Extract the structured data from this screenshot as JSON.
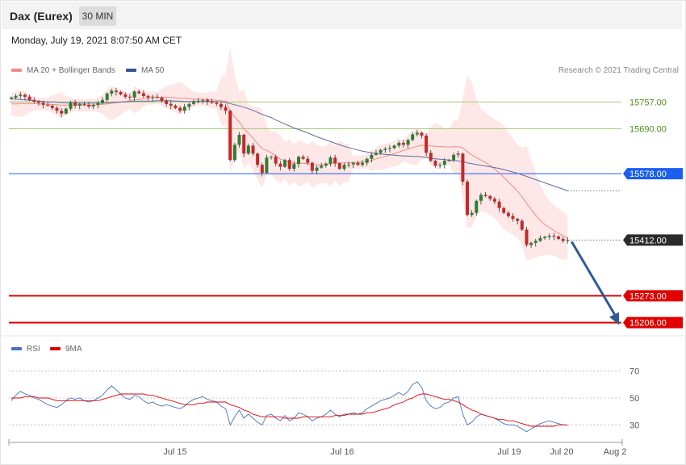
{
  "header": {
    "instrument": "Dax (Eurex)",
    "timeframe": "30 MIN",
    "datetime": "Monday, July 19, 2021 8:07:50 AM CET"
  },
  "legend": {
    "price": [
      {
        "label": "MA 20 + Bollinger Bands",
        "color": "#f28b82"
      },
      {
        "label": "MA 50",
        "color": "#2f5597"
      }
    ],
    "rsi": [
      {
        "label": "RSI",
        "color": "#4472c4"
      },
      {
        "label": "9MA",
        "color": "#e00000"
      }
    ],
    "copyright": "Research © 2021 Trading Central"
  },
  "colors": {
    "up": "#2e7d32",
    "down": "#c62828",
    "resistance": "#a6cc70",
    "pivot": "#1a5ff0",
    "support": "#e00000",
    "last": "#2b2b2b",
    "forecast_arrow": "#2e5a9a"
  },
  "chart_data": [
    {
      "type": "candlestick",
      "title": "Dax (Eurex)",
      "interval": "30 MIN",
      "ylim": [
        15185,
        15810
      ],
      "x_ticks": [
        "Jul 15",
        "Jul 16",
        "Jul 19",
        "Jul 20",
        "Aug 2"
      ],
      "last_price": 15412.0,
      "levels": [
        {
          "value": 15757.0,
          "label": "15757.00",
          "kind": "resistance"
        },
        {
          "value": 15690.0,
          "label": "15690.00",
          "kind": "resistance"
        },
        {
          "value": 15578.0,
          "label": "15578.00",
          "kind": "pivot"
        },
        {
          "value": 15412.0,
          "label": "15412.00",
          "kind": "last"
        },
        {
          "value": 15273.0,
          "label": "15273.00",
          "kind": "support"
        },
        {
          "value": 15206.0,
          "label": "15206.00",
          "kind": "support"
        }
      ],
      "closes": [
        15768,
        15772,
        15775,
        15770,
        15762,
        15758,
        15755,
        15750,
        15748,
        15742,
        15735,
        15728,
        15740,
        15755,
        15748,
        15752,
        15750,
        15746,
        15750,
        15755,
        15762,
        15778,
        15785,
        15782,
        15776,
        15770,
        15768,
        15783,
        15779,
        15772,
        15768,
        15770,
        15768,
        15760,
        15752,
        15748,
        15742,
        15735,
        15745,
        15752,
        15758,
        15760,
        15762,
        15758,
        15755,
        15752,
        15744,
        15735,
        15612,
        15650,
        15675,
        15628,
        15648,
        15628,
        15600,
        15580,
        15618,
        15620,
        15603,
        15595,
        15612,
        15590,
        15602,
        15620,
        15615,
        15605,
        15585,
        15593,
        15598,
        15603,
        15618,
        15604,
        15590,
        15600,
        15601,
        15605,
        15600,
        15605,
        15615,
        15625,
        15630,
        15637,
        15640,
        15642,
        15648,
        15655,
        15650,
        15662,
        15676,
        15680,
        15673,
        15630,
        15610,
        15598,
        15600,
        15610,
        15612,
        15625,
        15628,
        15558,
        15475,
        15480,
        15510,
        15525,
        15522,
        15515,
        15508,
        15492,
        15480,
        15472,
        15465,
        15460,
        15438,
        15400,
        15405,
        15410,
        15417,
        15420,
        15423,
        15421,
        15415,
        15410,
        15412
      ],
      "ma20": [
        15752,
        15752,
        15753,
        15753,
        15753,
        15753,
        15752,
        15752,
        15751,
        15751,
        15750,
        15749,
        15749,
        15749,
        15749,
        15749,
        15749,
        15749,
        15749,
        15750,
        15751,
        15752,
        15754,
        15755,
        15757,
        15758,
        15760,
        15762,
        15763,
        15765,
        15766,
        15767,
        15768,
        15768,
        15768,
        15768,
        15767,
        15766,
        15766,
        15765,
        15764,
        15764,
        15763,
        15763,
        15762,
        15761,
        15760,
        15759,
        15736,
        15719,
        15707,
        15690,
        15679,
        15667,
        15653,
        15641,
        15636,
        15630,
        15622,
        15614,
        15611,
        15606,
        15604,
        15604,
        15604,
        15603,
        15601,
        15600,
        15600,
        15601,
        15603,
        15604,
        15604,
        15605,
        15605,
        15606,
        15606,
        15607,
        15609,
        15611,
        15615,
        15618,
        15621,
        15624,
        15628,
        15632,
        15636,
        15639,
        15643,
        15646,
        15649,
        15648,
        15647,
        15646,
        15645,
        15645,
        15644,
        15645,
        15645,
        15642,
        15633,
        15625,
        15618,
        15612,
        15606,
        15598,
        15590,
        15580,
        15569,
        15557,
        15546,
        15534,
        15520,
        15504,
        15489,
        15474,
        15461,
        15451,
        15443,
        15436,
        15429,
        15423,
        15418
      ],
      "ma50": [
        15765,
        15764,
        15763,
        15762,
        15761,
        15760,
        15759,
        15758,
        15757,
        15757,
        15756,
        15755,
        15755,
        15755,
        15755,
        15754,
        15754,
        15754,
        15754,
        15754,
        15754,
        15755,
        15755,
        15756,
        15757,
        15757,
        15758,
        15758,
        15759,
        15759,
        15759,
        15759,
        15760,
        15760,
        15760,
        15760,
        15759,
        15759,
        15758,
        15758,
        15758,
        15758,
        15758,
        15758,
        15758,
        15758,
        15757,
        15756,
        15753,
        15750,
        15747,
        15744,
        15740,
        15736,
        15731,
        15726,
        15722,
        15718,
        15712,
        15707,
        15702,
        15697,
        15692,
        15688,
        15684,
        15680,
        15675,
        15670,
        15666,
        15662,
        15658,
        15654,
        15650,
        15646,
        15643,
        15640,
        15637,
        15634,
        15632,
        15630,
        15628,
        15627,
        15626,
        15625,
        15624,
        15623,
        15622,
        15622,
        15621,
        15621,
        15620,
        15618,
        15617,
        15615,
        15614,
        15613,
        15612,
        15611,
        15610,
        15608,
        15605,
        15603,
        15601,
        15599,
        15597,
        15595,
        15593,
        15591,
        15588,
        15585,
        15582,
        15579,
        15575,
        15571,
        15567,
        15563,
        15559,
        15555,
        15551,
        15547,
        15543,
        15539,
        15535
      ],
      "forecast": {
        "from": 15412,
        "to": 15206
      }
    },
    {
      "type": "line",
      "name": "RSI",
      "ylim": [
        20,
        80
      ],
      "y_ticks": [
        70,
        50,
        30
      ],
      "series": [
        {
          "name": "RSI",
          "values": [
            48,
            52,
            55,
            53,
            52,
            50,
            49,
            47,
            45,
            44,
            43,
            45,
            48,
            50,
            49,
            50,
            48,
            47,
            48,
            50,
            52,
            56,
            59,
            56,
            53,
            50,
            49,
            52,
            51,
            48,
            46,
            47,
            45,
            44,
            45,
            44,
            43,
            42,
            44,
            47,
            49,
            50,
            51,
            49,
            48,
            47,
            44,
            42,
            30,
            36,
            41,
            35,
            38,
            35,
            32,
            30,
            37,
            38,
            35,
            33,
            37,
            33,
            35,
            39,
            38,
            36,
            33,
            35,
            36,
            38,
            41,
            38,
            36,
            38,
            38,
            39,
            38,
            39,
            42,
            44,
            46,
            48,
            49,
            50,
            52,
            54,
            52,
            55,
            60,
            62,
            58,
            48,
            44,
            42,
            43,
            46,
            47,
            50,
            51,
            38,
            30,
            32,
            36,
            38,
            37,
            36,
            35,
            33,
            31,
            30,
            30,
            29,
            27,
            25,
            27,
            29,
            31,
            32,
            33,
            32,
            31,
            30,
            30
          ]
        },
        {
          "name": "9MA",
          "values": [
            50,
            50,
            50,
            51,
            51,
            51,
            50,
            50,
            50,
            49,
            48,
            48,
            48,
            48,
            48,
            48,
            48,
            48,
            48,
            48,
            49,
            50,
            51,
            52,
            53,
            53,
            53,
            53,
            53,
            53,
            52,
            52,
            51,
            50,
            49,
            48,
            47,
            46,
            45,
            45,
            45,
            46,
            46,
            47,
            47,
            47,
            47,
            47,
            45,
            44,
            43,
            41,
            40,
            38,
            37,
            36,
            36,
            36,
            36,
            36,
            35,
            35,
            35,
            35,
            36,
            36,
            36,
            36,
            36,
            36,
            36,
            37,
            37,
            37,
            38,
            38,
            38,
            38,
            39,
            39,
            40,
            41,
            42,
            43,
            45,
            46,
            47,
            49,
            50,
            52,
            53,
            53,
            52,
            51,
            50,
            49,
            49,
            48,
            47,
            45,
            43,
            41,
            40,
            38,
            37,
            36,
            35,
            34,
            34,
            33,
            33,
            32,
            31,
            30,
            29,
            29,
            29,
            29,
            29,
            29,
            30,
            30,
            30
          ]
        }
      ]
    }
  ]
}
